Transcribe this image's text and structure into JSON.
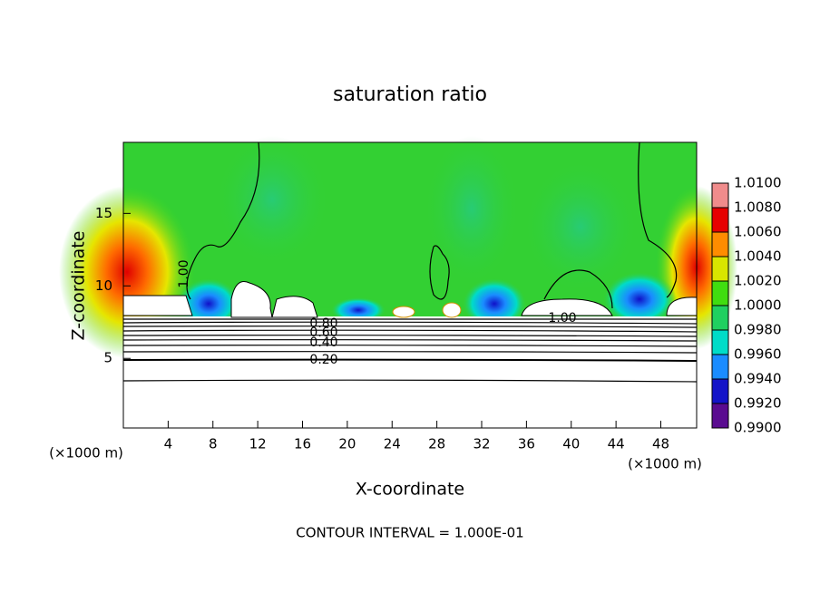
{
  "chart_data": {
    "type": "contour",
    "title": "saturation ratio",
    "x_label": "X-coordinate",
    "y_label": "Z-coordinate",
    "x_unit_label": "(×1000 m)",
    "x_unit_label_right": "(×1000 m)",
    "footnote": "CONTOUR INTERVAL = 1.000E-01",
    "xlim": [
      0,
      51.2
    ],
    "xticks": [
      4,
      8,
      12,
      16,
      20,
      24,
      28,
      32,
      36,
      40,
      44,
      48
    ],
    "ylim": [
      0.2,
      19.9
    ],
    "yticks": [
      5,
      10,
      15
    ],
    "contour_labels": [
      "1.00",
      "0.20",
      "0.40",
      "0.60",
      "0.80",
      "1.00"
    ],
    "colorbar": {
      "lim": [
        0.99,
        1.01
      ],
      "ticks": [
        {
          "value": 0.99,
          "label": "0.9900"
        },
        {
          "value": 0.992,
          "label": "0.9920"
        },
        {
          "value": 0.994,
          "label": "0.9940"
        },
        {
          "value": 0.996,
          "label": "0.9960"
        },
        {
          "value": 0.998,
          "label": "0.9980"
        },
        {
          "value": 1.0,
          "label": "1.0000"
        },
        {
          "value": 1.002,
          "label": "1.0020"
        },
        {
          "value": 1.004,
          "label": "1.0040"
        },
        {
          "value": 1.006,
          "label": "1.0060"
        },
        {
          "value": 1.008,
          "label": "1.0080"
        },
        {
          "value": 1.01,
          "label": "1.0100"
        }
      ],
      "colors": [
        "#5a0c90",
        "#1414c8",
        "#1a8cff",
        "#00dcc8",
        "#20d060",
        "#40dd10",
        "#d8e600",
        "#ff8c00",
        "#e60000",
        "#f08c8c"
      ]
    }
  }
}
